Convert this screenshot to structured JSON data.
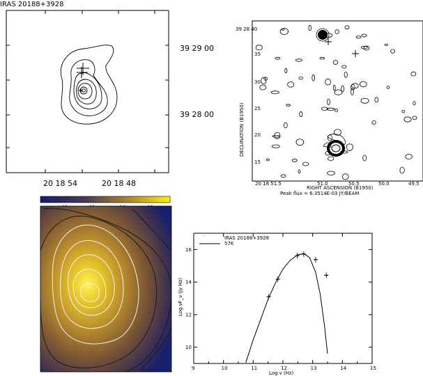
{
  "panel_a": {
    "title": "IRAS 20188+3928",
    "dec_labels": [
      "39 29 00",
      "39 28 00"
    ],
    "ra_labels": [
      "20 18 54",
      "20 18 48"
    ]
  },
  "panel_b": {
    "ylabel": "DECLINATION (B1950)",
    "xlabel": "RIGHT ASCENSION (B1950)",
    "peak_flux": "Peak flux =  6.3514E-03 JY/BEAM",
    "dec_ticks": [
      "39 28 40",
      "35",
      "30",
      "25",
      "20",
      "15"
    ],
    "ra_ticks": [
      "20 18 51.5",
      "51.0",
      "50.5",
      "50.0",
      "49.5"
    ]
  },
  "panel_c": {
    "colorbar_ticks": [
      "10",
      "12",
      "14",
      "16"
    ],
    "colors": {
      "low": "#1a1f6e",
      "mid": "#9a6a2a",
      "high": "#f8e818"
    }
  },
  "chart_data": {
    "type": "scatter",
    "xlabel": "Log ν (Hz)",
    "ylabel": "Log νF_ν (Jy Hz)",
    "xlim": [
      9,
      15
    ],
    "ylim": [
      9,
      17
    ],
    "x_ticks": [
      "9",
      "10",
      "11",
      "12",
      "13",
      "14",
      "15"
    ],
    "y_ticks": [
      "10",
      "12",
      "14",
      "16"
    ],
    "legend": [
      "IRAS 20188+3928",
      "57K"
    ],
    "series": [
      {
        "name": "IRAS 20188+3928",
        "x": [
          11.52,
          11.83,
          12.48,
          12.7,
          13.1,
          13.46
        ],
        "y": [
          13.1,
          14.18,
          15.62,
          15.72,
          15.38,
          14.42
        ]
      },
      {
        "name": "57K",
        "x": [
          10.75,
          11.0,
          11.25,
          11.5,
          11.75,
          12.0,
          12.25,
          12.5,
          12.7,
          12.9,
          13.1,
          13.25,
          13.4,
          13.5
        ],
        "y": [
          9.05,
          10.45,
          11.7,
          12.95,
          13.95,
          14.8,
          15.35,
          15.68,
          15.75,
          15.5,
          14.6,
          13.3,
          11.3,
          9.6
        ]
      }
    ]
  }
}
